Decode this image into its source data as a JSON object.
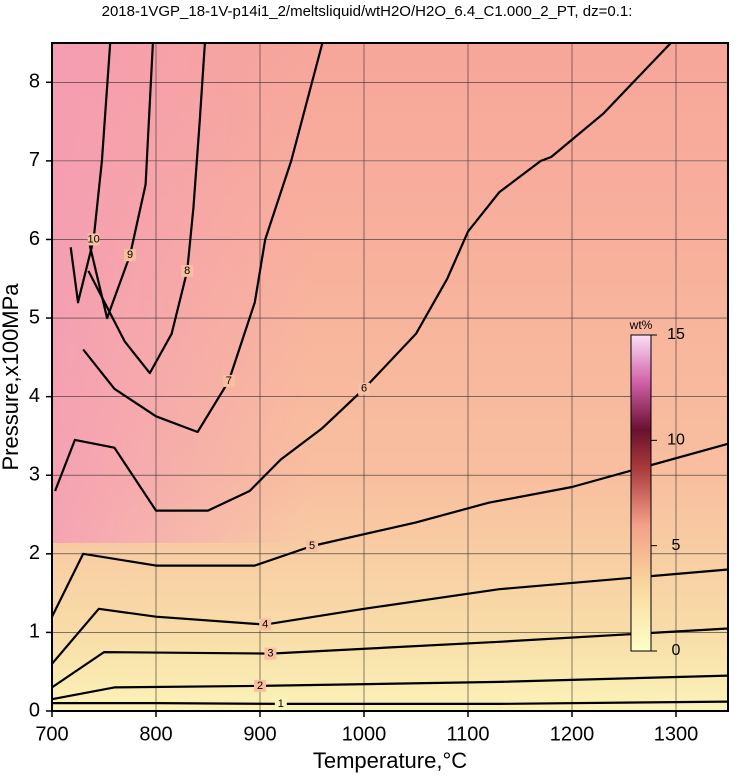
{
  "chart_data": {
    "type": "contour",
    "title": "2018-1VGP_18-1V-p14i1_2/meltsliquid/wtH2O/H2O_6.4_C1.000_2_PT, dz=0.1:",
    "x_label": "Temperature,°C",
    "y_label": "Pressure,x100MPa",
    "xlim": [
      700,
      1350
    ],
    "ylim": [
      0,
      8.5
    ],
    "xticks": [
      700,
      800,
      900,
      1000,
      1100,
      1200,
      1300
    ],
    "yticks": [
      0,
      1,
      2,
      3,
      4,
      5,
      6,
      7,
      8
    ],
    "grid": true,
    "contours": [
      {
        "level": "1",
        "x": [
          700,
          800,
          920,
          1130,
          1350
        ],
        "y": [
          0.1,
          0.1,
          0.09,
          0.09,
          0.12
        ]
      },
      {
        "level": "2",
        "x": [
          700,
          760,
          900,
          1130,
          1350
        ],
        "y": [
          0.15,
          0.3,
          0.32,
          0.37,
          0.45
        ]
      },
      {
        "level": "3",
        "x": [
          700,
          750,
          910,
          1130,
          1350
        ],
        "y": [
          0.3,
          0.75,
          0.73,
          0.88,
          1.05
        ]
      },
      {
        "level": "4",
        "x": [
          700,
          745,
          800,
          905,
          1000,
          1130,
          1350
        ],
        "y": [
          0.6,
          1.3,
          1.2,
          1.1,
          1.3,
          1.55,
          1.8
        ]
      },
      {
        "level": "5",
        "x": [
          700,
          730,
          800,
          895,
          950,
          1050,
          1120,
          1200,
          1350
        ],
        "y": [
          1.2,
          2.0,
          1.85,
          1.85,
          2.1,
          2.4,
          2.65,
          2.85,
          3.4
        ]
      },
      {
        "level": "6",
        "x": [
          703,
          722,
          760,
          800,
          850,
          890,
          920,
          960,
          1000,
          1050,
          1080,
          1100,
          1130,
          1170,
          1180,
          1230,
          1295
        ],
        "y": [
          2.8,
          3.45,
          3.35,
          2.55,
          2.55,
          2.8,
          3.2,
          3.6,
          4.1,
          4.8,
          5.5,
          6.1,
          6.6,
          7.0,
          7.05,
          7.6,
          8.5
        ]
      },
      {
        "level": "7",
        "x": [
          730,
          760,
          800,
          840,
          870,
          895,
          905,
          930,
          960
        ],
        "y": [
          4.6,
          4.1,
          3.75,
          3.55,
          4.2,
          5.2,
          6.0,
          7.0,
          8.5
        ]
      },
      {
        "level": "8",
        "x": [
          735,
          770,
          794,
          815,
          830,
          836,
          842,
          847
        ],
        "y": [
          5.6,
          4.7,
          4.3,
          4.8,
          5.6,
          6.4,
          7.5,
          8.5
        ]
      },
      {
        "level": "9",
        "x": [
          735,
          753,
          775,
          790,
          797
        ],
        "y": [
          6.0,
          5.0,
          5.8,
          6.7,
          8.5
        ]
      },
      {
        "level": "10",
        "x": [
          718,
          725,
          740,
          748,
          756
        ],
        "y": [
          5.9,
          5.2,
          6.0,
          7.0,
          8.5
        ]
      }
    ],
    "colorbar": {
      "label": "wt%",
      "lim": [
        0,
        15
      ],
      "ticks": [
        0,
        5,
        10,
        15
      ]
    }
  }
}
